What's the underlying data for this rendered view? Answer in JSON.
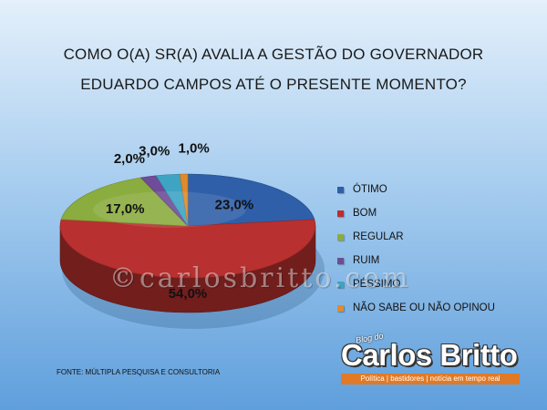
{
  "title_line1": "COMO O(A) SR(A) AVALIA A GESTÃO DO GOVERNADOR",
  "title_line2": "EDUARDO CAMPOS ATÉ O PRESENTE MOMENTO?",
  "source": "FONTE: MÚLTIPLA PESQUISA E CONSULTORIA",
  "watermark": "©carlosbritto.com",
  "logo": {
    "small": "Blog do",
    "name": "Carlos Britto",
    "tagline": "Política | bastidores | notícia em tempo real"
  },
  "chart_data": {
    "type": "pie",
    "title": "COMO O(A) SR(A) AVALIA A GESTÃO DO GOVERNADOR EDUARDO CAMPOS ATÉ O PRESENTE MOMENTO?",
    "three_d": true,
    "legend_position": "right",
    "slices": [
      {
        "label": "ÓTIMO",
        "value": 23.0,
        "display": "23,0%",
        "color": "#2f5fa8"
      },
      {
        "label": "BOM",
        "value": 54.0,
        "display": "54,0%",
        "color": "#b8302f"
      },
      {
        "label": "REGULAR",
        "value": 17.0,
        "display": "17,0%",
        "color": "#8bac3f"
      },
      {
        "label": "RUIM",
        "value": 2.0,
        "display": "2,0%",
        "color": "#6e4c98"
      },
      {
        "label": "PÉSSIMO",
        "value": 3.0,
        "display": "3,0%",
        "color": "#3ea4c4"
      },
      {
        "label": "NÃO SABE OU NÃO OPINOU",
        "value": 1.0,
        "display": "1,0%",
        "color": "#e08a2c"
      }
    ]
  }
}
